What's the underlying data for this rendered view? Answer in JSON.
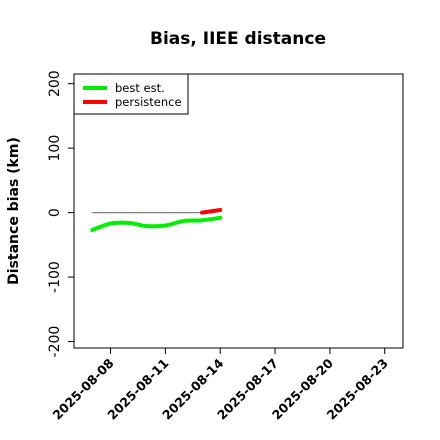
{
  "chart_data": {
    "type": "line",
    "title": "Bias, IIEE distance",
    "xlabel": "",
    "ylabel": "Distance bias (km)",
    "xlim": [
      "2025-08-06",
      "2025-08-24"
    ],
    "ylim": [
      -210,
      215
    ],
    "y_ticks": [
      -200,
      -100,
      0,
      100,
      200
    ],
    "x_ticks": [
      "2025-08-08",
      "2025-08-11",
      "2025-08-14",
      "2025-08-17",
      "2025-08-20",
      "2025-08-23"
    ],
    "grid": false,
    "legend_position": "top-left",
    "reference_line": {
      "y": 0,
      "x_start": "2025-08-07",
      "x_end": "2025-08-13",
      "color": "#808080"
    },
    "series": [
      {
        "name": "best est.",
        "color": "#00ee00",
        "x": [
          "2025-08-07",
          "2025-08-08",
          "2025-08-09",
          "2025-08-10",
          "2025-08-11",
          "2025-08-12",
          "2025-08-13",
          "2025-08-14"
        ],
        "y": [
          -27,
          -17,
          -16,
          -21,
          -20,
          -13,
          -12,
          -8
        ]
      },
      {
        "name": "persistence",
        "color": "#ff0000",
        "x": [
          "2025-08-13",
          "2025-08-14"
        ],
        "y": [
          0,
          4
        ]
      }
    ]
  }
}
